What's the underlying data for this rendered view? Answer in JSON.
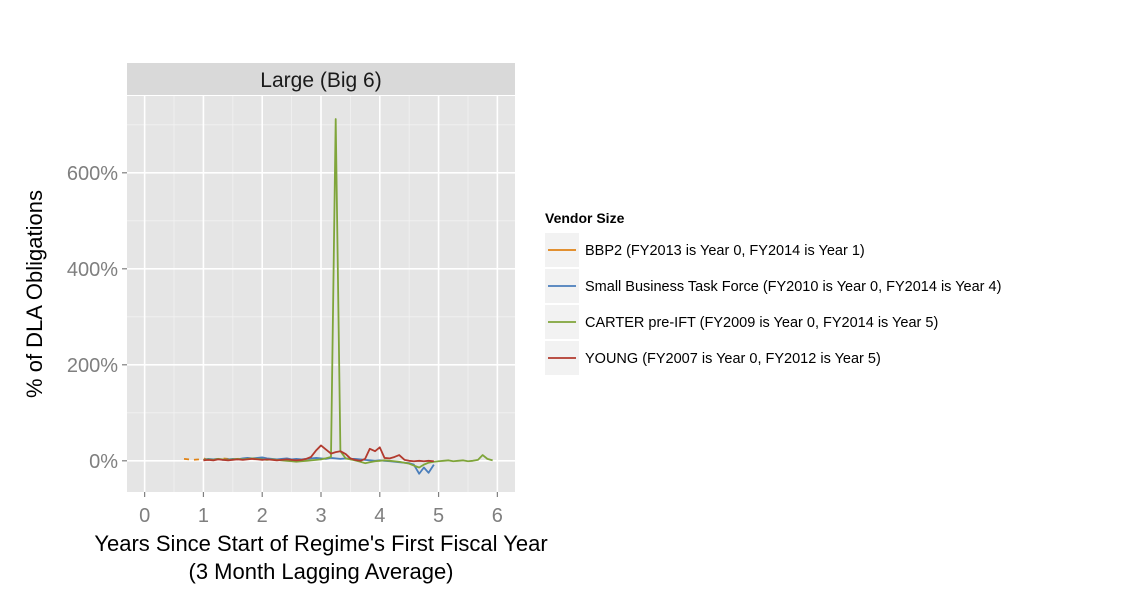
{
  "chart_data": {
    "type": "line",
    "facet_title": "Large (Big 6)",
    "xlabel_line1": "Years Since Start of Regime's First Fiscal Year",
    "xlabel_line2": "(3 Month Lagging Average)",
    "ylabel": "% of DLA Obligations",
    "xlim": [
      -0.3,
      6.3
    ],
    "ylim": [
      -65,
      760
    ],
    "x_ticks": [
      0,
      1,
      2,
      3,
      4,
      5,
      6
    ],
    "y_ticks": [
      0,
      200,
      400,
      600
    ],
    "y_tick_labels": [
      "0%",
      "200%",
      "400%",
      "600%"
    ],
    "grid": true,
    "legend_position": "right",
    "legend_title": "Vendor Size",
    "series": [
      {
        "name": "BBP2 (FY2013 is Year 0, FY2014 is Year 1)",
        "color": "#E08214",
        "dashed": true,
        "x": [
          0.67,
          0.75,
          0.83,
          0.92,
          1.0,
          1.08,
          1.17,
          1.25,
          1.33,
          1.42,
          1.5,
          1.58,
          1.67,
          1.75,
          1.83,
          1.92
        ],
        "y": [
          4,
          3,
          2,
          3,
          5,
          2,
          3,
          4,
          5,
          4,
          3,
          4,
          5,
          4,
          3,
          4
        ]
      },
      {
        "name": "Small Business Task Force (FY2010 is Year 0, FY2014 is Year 4)",
        "color": "#4A7EBB",
        "dashed": false,
        "x": [
          1.0,
          1.08,
          1.17,
          1.25,
          1.33,
          1.42,
          1.5,
          1.58,
          1.67,
          1.75,
          1.83,
          1.92,
          2.0,
          2.08,
          2.17,
          2.25,
          2.33,
          2.42,
          2.5,
          2.58,
          2.67,
          2.75,
          2.83,
          2.92,
          3.0,
          3.08,
          3.17,
          3.25,
          3.33,
          3.42,
          3.5,
          3.58,
          3.67,
          3.75,
          3.83,
          3.92,
          4.0,
          4.08,
          4.17,
          4.25,
          4.33,
          4.42,
          4.5,
          4.58,
          4.67,
          4.75,
          4.83,
          4.92
        ],
        "y": [
          2,
          4,
          3,
          4,
          2,
          3,
          4,
          3,
          5,
          6,
          5,
          6,
          7,
          5,
          4,
          3,
          4,
          5,
          3,
          4,
          3,
          4,
          5,
          6,
          5,
          4,
          6,
          5,
          4,
          5,
          4,
          4,
          3,
          2,
          1,
          0,
          1,
          0,
          -1,
          -2,
          -3,
          -4,
          -5,
          -8,
          -27,
          -14,
          -25,
          -8
        ]
      },
      {
        "name": "CARTER pre-IFT (FY2009 is Year 0, FY2014 is Year 5)",
        "color": "#7FA53A",
        "dashed": false,
        "x": [
          1.0,
          1.08,
          1.17,
          1.25,
          1.33,
          1.42,
          1.5,
          1.58,
          1.67,
          1.75,
          1.83,
          1.92,
          2.0,
          2.08,
          2.17,
          2.25,
          2.33,
          2.42,
          2.5,
          2.58,
          2.67,
          2.75,
          2.83,
          2.92,
          3.0,
          3.08,
          3.17,
          3.25,
          3.33,
          3.42,
          3.5,
          3.58,
          3.67,
          3.75,
          3.83,
          3.92,
          4.0,
          4.08,
          4.17,
          4.25,
          4.33,
          4.42,
          4.5,
          4.58,
          4.67,
          4.75,
          4.83,
          4.92,
          5.0,
          5.08,
          5.17,
          5.25,
          5.33,
          5.42,
          5.5,
          5.58,
          5.67,
          5.75,
          5.83,
          5.92
        ],
        "y": [
          2,
          3,
          2,
          4,
          3,
          2,
          3,
          4,
          3,
          4,
          5,
          4,
          3,
          2,
          3,
          2,
          1,
          0,
          -1,
          -2,
          -1,
          0,
          1,
          2,
          3,
          5,
          8,
          712,
          20,
          5,
          3,
          1,
          -2,
          -5,
          -3,
          -1,
          0,
          1,
          0,
          -1,
          -2,
          -4,
          -6,
          -10,
          -14,
          -8,
          -4,
          -2,
          -1,
          0,
          1,
          -1,
          0,
          1,
          -1,
          0,
          2,
          12,
          4,
          1
        ]
      },
      {
        "name": "YOUNG (FY2007 is Year 0, FY2012 is Year 5)",
        "color": "#B23A2E",
        "dashed": false,
        "x": [
          1.0,
          1.08,
          1.17,
          1.25,
          1.33,
          1.42,
          1.5,
          1.58,
          1.67,
          1.75,
          1.83,
          1.92,
          2.0,
          2.08,
          2.17,
          2.25,
          2.33,
          2.42,
          2.5,
          2.58,
          2.67,
          2.75,
          2.83,
          2.92,
          3.0,
          3.08,
          3.17,
          3.25,
          3.33,
          3.42,
          3.5,
          3.58,
          3.67,
          3.75,
          3.83,
          3.92,
          4.0,
          4.08,
          4.17,
          4.25,
          4.33,
          4.42,
          4.5,
          4.58,
          4.67,
          4.75,
          4.83,
          4.92
        ],
        "y": [
          1,
          2,
          1,
          3,
          2,
          1,
          2,
          3,
          2,
          3,
          4,
          3,
          2,
          3,
          2,
          1,
          2,
          3,
          2,
          1,
          2,
          4,
          8,
          22,
          32,
          24,
          15,
          18,
          20,
          14,
          5,
          2,
          0,
          4,
          25,
          20,
          28,
          6,
          5,
          8,
          12,
          2,
          0,
          -1,
          0,
          -1,
          0,
          -1
        ]
      }
    ]
  }
}
